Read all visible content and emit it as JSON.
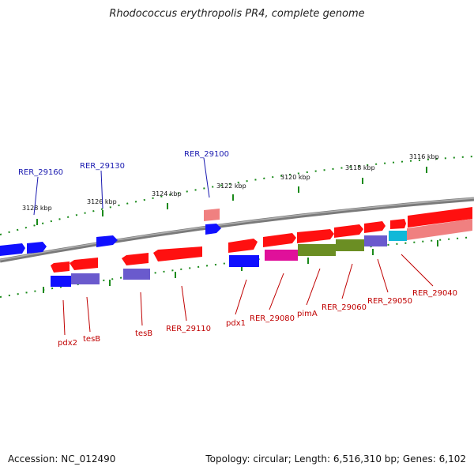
{
  "title": "Rhodococcus erythropolis PR4, complete genome",
  "footer": {
    "accession": "Accession: NC_012490",
    "summary": "Topology: circular; Length: 6,516,310 bp; Genes: 6,102"
  },
  "colors": {
    "backbone": "#808080",
    "tick": "#1a8a1a",
    "gene_red": "#ff1010",
    "gene_blue": "#1010ff",
    "gene_pink": "#f08080",
    "gene_slate": "#6a5acd",
    "gene_olive": "#6b8e23",
    "gene_magenta": "#e0109a",
    "gene_cyan": "#10b8d8",
    "gene_gray": "#b8b8b8",
    "label_blue": "#1a1ab0",
    "label_red": "#c00000"
  },
  "scale_labels": [
    "3128 kbp",
    "3126 kbp",
    "3124 kbp",
    "3122 kbp",
    "3120 kbp",
    "3118 kbp",
    "3116 kbp"
  ],
  "upper_gene_labels": [
    "RER_29160",
    "RER_29130",
    "RER_29100"
  ],
  "lower_gene_labels": [
    "pdx2",
    "tesB",
    "tesB",
    "RER_29110",
    "pdx1",
    "RER_29080",
    "pimA",
    "RER_29060",
    "RER_29050",
    "RER_29040"
  ]
}
